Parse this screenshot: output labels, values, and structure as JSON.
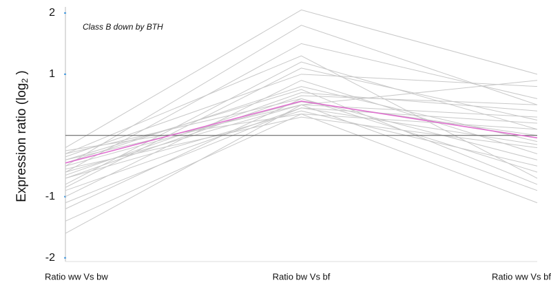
{
  "chart_data": {
    "type": "line",
    "annotation": "Class B down by BTH",
    "ylabel": "Expression ratio (log",
    "ylabel_sub": "2",
    "ylabel_end": " )",
    "categories": [
      "Ratio ww Vs bw",
      "Ratio bw Vs bf",
      "Ratio ww Vs bf"
    ],
    "ylim": [
      -2.06,
      2.1
    ],
    "yticks": [
      -2,
      -1,
      1,
      2
    ],
    "reference_line": 0,
    "series": [
      {
        "color": "#c8c8c8",
        "values": [
          -1.6,
          0.5,
          -0.9
        ]
      },
      {
        "color": "#c8c8c8",
        "values": [
          -1.4,
          0.35,
          -1.1
        ]
      },
      {
        "color": "#c8c8c8",
        "values": [
          -1.2,
          0.6,
          -0.6
        ]
      },
      {
        "color": "#c8c8c8",
        "values": [
          -1.0,
          0.9,
          -0.3
        ]
      },
      {
        "color": "#c8c8c8",
        "values": [
          -0.9,
          0.45,
          0.2
        ]
      },
      {
        "color": "#c8c8c8",
        "values": [
          -0.8,
          1.2,
          0.1
        ]
      },
      {
        "color": "#c8c8c8",
        "values": [
          -0.7,
          0.4,
          -0.5
        ]
      },
      {
        "color": "#c8c8c8",
        "values": [
          -0.65,
          0.7,
          0.4
        ]
      },
      {
        "color": "#c8c8c8",
        "values": [
          -0.6,
          1.5,
          0.6
        ]
      },
      {
        "color": "#c8c8c8",
        "values": [
          -0.55,
          0.3,
          -0.2
        ]
      },
      {
        "color": "#c8c8c8",
        "values": [
          -0.5,
          0.55,
          0.0
        ]
      },
      {
        "color": "#c8c8c8",
        "values": [
          -0.45,
          0.8,
          -0.1
        ]
      },
      {
        "color": "#c8c8c8",
        "values": [
          -0.4,
          0.5,
          0.3
        ]
      },
      {
        "color": "#c8c8c8",
        "values": [
          -0.35,
          1.0,
          0.8
        ]
      },
      {
        "color": "#c8c8c8",
        "values": [
          -0.3,
          0.6,
          -0.4
        ]
      },
      {
        "color": "#c8c8c8",
        "values": [
          -0.25,
          0.35,
          0.1
        ]
      },
      {
        "color": "#c8c8c8",
        "values": [
          -0.2,
          2.05,
          1.0
        ]
      },
      {
        "color": "#c8c8c8",
        "values": [
          -0.5,
          1.8,
          0.5
        ]
      },
      {
        "color": "#c8c8c8",
        "values": [
          -0.3,
          1.3,
          -0.7
        ]
      },
      {
        "color": "#c8c8c8",
        "values": [
          -0.7,
          0.65,
          0.5
        ]
      },
      {
        "color": "#c8c8c8",
        "values": [
          -1.1,
          0.45,
          -0.15
        ]
      },
      {
        "color": "#c8c8c8",
        "values": [
          -0.4,
          0.75,
          -0.8
        ]
      },
      {
        "color": "#c8c8c8",
        "values": [
          -0.6,
          0.5,
          0.9
        ]
      },
      {
        "color": "#c8c8c8",
        "values": [
          -0.85,
          1.1,
          0.25
        ]
      },
      {
        "color": "#e070d0",
        "values": [
          -0.45,
          0.56,
          -0.04
        ]
      }
    ]
  }
}
